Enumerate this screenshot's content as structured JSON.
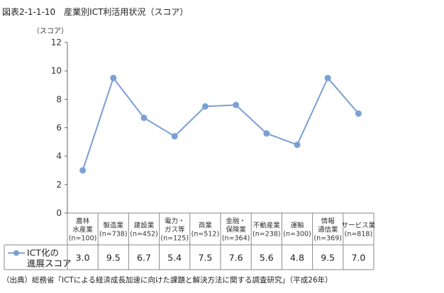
{
  "figure_title": "図表2-1-1-10　産業別ICT利活用状況（スコア）",
  "source_note": "（出典）総務省「ICTによる経済成長加速に向けた課題と解決方法に関する調査研究」（平成26年）",
  "chart_data": {
    "type": "line",
    "title": "図表2-1-1-10　産業別ICT利活用状況（スコア）",
    "ylabel": "（スコア）",
    "ylim": [
      0,
      12
    ],
    "yticks": [
      0,
      2,
      4,
      6,
      8,
      10,
      12
    ],
    "grid": false,
    "legend_position": "table-left",
    "categories": [
      [
        "農林",
        "水産業",
        "(n=100)"
      ],
      [
        "製造業",
        "(n=738)"
      ],
      [
        "建設業",
        "(n=452)"
      ],
      [
        "電力・",
        "ガス等",
        "(n=125)"
      ],
      [
        "商業",
        "(n=512)"
      ],
      [
        "金融・",
        "保険業",
        "(n=364)"
      ],
      [
        "不動産業",
        "(n=238)"
      ],
      [
        "運輸",
        "(n=300)"
      ],
      [
        "情報",
        "通信業",
        "(n=369)"
      ],
      [
        "サービス業",
        "(n=818)"
      ]
    ],
    "series": [
      {
        "name": "ICT化の進展スコア",
        "name_lines": [
          "ICT化の",
          "進展スコア"
        ],
        "color": "#7b9fd6",
        "values": [
          3.0,
          9.5,
          6.7,
          5.4,
          7.5,
          7.6,
          5.6,
          4.8,
          9.5,
          7.0
        ],
        "labels": [
          "3.0",
          "9.5",
          "6.7",
          "5.4",
          "7.5",
          "7.6",
          "5.6",
          "4.8",
          "9.5",
          "7.0"
        ]
      }
    ]
  }
}
